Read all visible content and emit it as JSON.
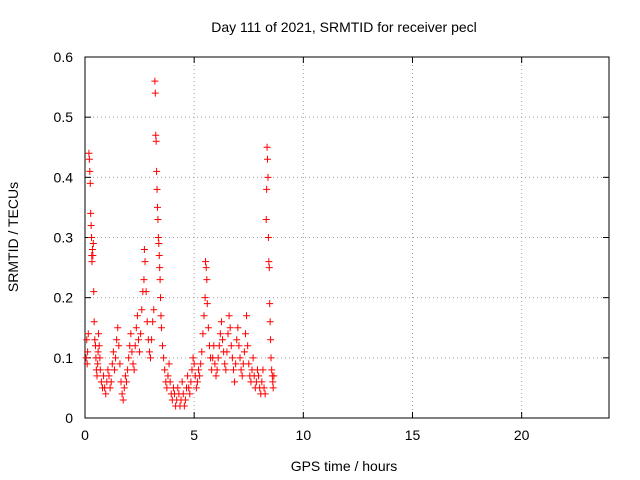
{
  "chart_data": {
    "type": "scatter",
    "title": "Day 111 of 2021, SRMTID for receiver pecl",
    "xlabel": "GPS time / hours",
    "ylabel": "SRMTID / TECUs",
    "xlim": [
      0,
      24
    ],
    "ylim": [
      0,
      0.6
    ],
    "x_ticks": [
      0,
      5,
      10,
      15,
      20
    ],
    "x_tick_labels": [
      "0",
      "5",
      "10",
      "15",
      "20"
    ],
    "y_ticks": [
      0,
      0.1,
      0.2,
      0.3,
      0.4,
      0.5,
      0.6
    ],
    "y_tick_labels": [
      "0",
      "0.1",
      "0.2",
      "0.3",
      "0.4",
      "0.5",
      "0.6"
    ],
    "grid": true,
    "marker": "+",
    "series": [
      {
        "name": "SRMTID",
        "color": "#ff0000",
        "points": [
          [
            0.05,
            0.1
          ],
          [
            0.08,
            0.13
          ],
          [
            0.1,
            0.09
          ],
          [
            0.12,
            0.11
          ],
          [
            0.15,
            0.14
          ],
          [
            0.18,
            0.44
          ],
          [
            0.2,
            0.43
          ],
          [
            0.22,
            0.41
          ],
          [
            0.24,
            0.39
          ],
          [
            0.26,
            0.34
          ],
          [
            0.28,
            0.32
          ],
          [
            0.3,
            0.3
          ],
          [
            0.31,
            0.27
          ],
          [
            0.32,
            0.26
          ],
          [
            0.34,
            0.28
          ],
          [
            0.36,
            0.27
          ],
          [
            0.38,
            0.29
          ],
          [
            0.4,
            0.21
          ],
          [
            0.42,
            0.16
          ],
          [
            0.45,
            0.13
          ],
          [
            0.48,
            0.12
          ],
          [
            0.5,
            0.1
          ],
          [
            0.52,
            0.08
          ],
          [
            0.55,
            0.07
          ],
          [
            0.58,
            0.09
          ],
          [
            0.6,
            0.11
          ],
          [
            0.62,
            0.14
          ],
          [
            0.65,
            0.12
          ],
          [
            0.68,
            0.1
          ],
          [
            0.7,
            0.08
          ],
          [
            0.75,
            0.06
          ],
          [
            0.8,
            0.05
          ],
          [
            0.85,
            0.07
          ],
          [
            0.9,
            0.05
          ],
          [
            0.95,
            0.04
          ],
          [
            1.0,
            0.06
          ],
          [
            1.05,
            0.08
          ],
          [
            1.1,
            0.07
          ],
          [
            1.15,
            0.05
          ],
          [
            1.2,
            0.06
          ],
          [
            1.25,
            0.09
          ],
          [
            1.3,
            0.11
          ],
          [
            1.35,
            0.08
          ],
          [
            1.4,
            0.1
          ],
          [
            1.45,
            0.13
          ],
          [
            1.5,
            0.15
          ],
          [
            1.55,
            0.12
          ],
          [
            1.6,
            0.09
          ],
          [
            1.65,
            0.06
          ],
          [
            1.7,
            0.04
          ],
          [
            1.75,
            0.03
          ],
          [
            1.8,
            0.05
          ],
          [
            1.85,
            0.07
          ],
          [
            1.9,
            0.06
          ],
          [
            1.95,
            0.08
          ],
          [
            2.0,
            0.1
          ],
          [
            2.05,
            0.12
          ],
          [
            2.1,
            0.14
          ],
          [
            2.15,
            0.11
          ],
          [
            2.2,
            0.09
          ],
          [
            2.25,
            0.08
          ],
          [
            2.3,
            0.12
          ],
          [
            2.35,
            0.15
          ],
          [
            2.4,
            0.17
          ],
          [
            2.45,
            0.13
          ],
          [
            2.5,
            0.11
          ],
          [
            2.55,
            0.14
          ],
          [
            2.6,
            0.18
          ],
          [
            2.65,
            0.21
          ],
          [
            2.7,
            0.23
          ],
          [
            2.72,
            0.28
          ],
          [
            2.75,
            0.26
          ],
          [
            2.8,
            0.21
          ],
          [
            2.85,
            0.16
          ],
          [
            2.9,
            0.13
          ],
          [
            2.95,
            0.11
          ],
          [
            3.0,
            0.1
          ],
          [
            3.05,
            0.13
          ],
          [
            3.1,
            0.16
          ],
          [
            3.15,
            0.18
          ],
          [
            3.2,
            0.56
          ],
          [
            3.22,
            0.54
          ],
          [
            3.24,
            0.47
          ],
          [
            3.26,
            0.46
          ],
          [
            3.28,
            0.41
          ],
          [
            3.3,
            0.38
          ],
          [
            3.32,
            0.35
          ],
          [
            3.34,
            0.33
          ],
          [
            3.36,
            0.3
          ],
          [
            3.38,
            0.29
          ],
          [
            3.4,
            0.27
          ],
          [
            3.42,
            0.25
          ],
          [
            3.44,
            0.23
          ],
          [
            3.46,
            0.2
          ],
          [
            3.48,
            0.17
          ],
          [
            3.5,
            0.15
          ],
          [
            3.55,
            0.12
          ],
          [
            3.6,
            0.1
          ],
          [
            3.65,
            0.08
          ],
          [
            3.7,
            0.06
          ],
          [
            3.75,
            0.05
          ],
          [
            3.8,
            0.07
          ],
          [
            3.85,
            0.09
          ],
          [
            3.9,
            0.06
          ],
          [
            3.95,
            0.04
          ],
          [
            4.0,
            0.03
          ],
          [
            4.05,
            0.05
          ],
          [
            4.1,
            0.04
          ],
          [
            4.15,
            0.02
          ],
          [
            4.2,
            0.03
          ],
          [
            4.25,
            0.05
          ],
          [
            4.3,
            0.04
          ],
          [
            4.35,
            0.02
          ],
          [
            4.4,
            0.03
          ],
          [
            4.45,
            0.06
          ],
          [
            4.5,
            0.04
          ],
          [
            4.55,
            0.02
          ],
          [
            4.6,
            0.03
          ],
          [
            4.65,
            0.05
          ],
          [
            4.7,
            0.07
          ],
          [
            4.75,
            0.05
          ],
          [
            4.8,
            0.04
          ],
          [
            4.85,
            0.06
          ],
          [
            4.9,
            0.08
          ],
          [
            4.95,
            0.1
          ],
          [
            5.0,
            0.09
          ],
          [
            5.05,
            0.07
          ],
          [
            5.1,
            0.05
          ],
          [
            5.15,
            0.06
          ],
          [
            5.2,
            0.08
          ],
          [
            5.25,
            0.07
          ],
          [
            5.3,
            0.09
          ],
          [
            5.35,
            0.11
          ],
          [
            5.4,
            0.14
          ],
          [
            5.45,
            0.17
          ],
          [
            5.5,
            0.2
          ],
          [
            5.52,
            0.26
          ],
          [
            5.55,
            0.25
          ],
          [
            5.58,
            0.23
          ],
          [
            5.6,
            0.19
          ],
          [
            5.65,
            0.15
          ],
          [
            5.7,
            0.12
          ],
          [
            5.75,
            0.1
          ],
          [
            5.8,
            0.08
          ],
          [
            5.85,
            0.1
          ],
          [
            5.9,
            0.12
          ],
          [
            5.95,
            0.09
          ],
          [
            6.0,
            0.07
          ],
          [
            6.05,
            0.08
          ],
          [
            6.1,
            0.1
          ],
          [
            6.15,
            0.12
          ],
          [
            6.2,
            0.14
          ],
          [
            6.25,
            0.16
          ],
          [
            6.3,
            0.13
          ],
          [
            6.35,
            0.11
          ],
          [
            6.4,
            0.09
          ],
          [
            6.45,
            0.08
          ],
          [
            6.5,
            0.11
          ],
          [
            6.55,
            0.14
          ],
          [
            6.6,
            0.17
          ],
          [
            6.65,
            0.15
          ],
          [
            6.7,
            0.12
          ],
          [
            6.75,
            0.1
          ],
          [
            6.8,
            0.08
          ],
          [
            6.85,
            0.06
          ],
          [
            6.9,
            0.09
          ],
          [
            6.95,
            0.13
          ],
          [
            7.0,
            0.15
          ],
          [
            7.05,
            0.12
          ],
          [
            7.1,
            0.1
          ],
          [
            7.15,
            0.08
          ],
          [
            7.2,
            0.07
          ],
          [
            7.25,
            0.09
          ],
          [
            7.3,
            0.11
          ],
          [
            7.35,
            0.14
          ],
          [
            7.4,
            0.17
          ],
          [
            7.45,
            0.12
          ],
          [
            7.5,
            0.09
          ],
          [
            7.55,
            0.07
          ],
          [
            7.6,
            0.06
          ],
          [
            7.65,
            0.08
          ],
          [
            7.7,
            0.1
          ],
          [
            7.75,
            0.07
          ],
          [
            7.8,
            0.05
          ],
          [
            7.85,
            0.06
          ],
          [
            7.9,
            0.08
          ],
          [
            7.95,
            0.07
          ],
          [
            8.0,
            0.05
          ],
          [
            8.05,
            0.04
          ],
          [
            8.1,
            0.06
          ],
          [
            8.15,
            0.08
          ],
          [
            8.2,
            0.05
          ],
          [
            8.25,
            0.04
          ],
          [
            8.3,
            0.33
          ],
          [
            8.32,
            0.38
          ],
          [
            8.34,
            0.45
          ],
          [
            8.36,
            0.43
          ],
          [
            8.38,
            0.4
          ],
          [
            8.4,
            0.3
          ],
          [
            8.42,
            0.26
          ],
          [
            8.44,
            0.25
          ],
          [
            8.46,
            0.19
          ],
          [
            8.48,
            0.16
          ],
          [
            8.5,
            0.13
          ],
          [
            8.52,
            0.1
          ],
          [
            8.55,
            0.08
          ],
          [
            8.58,
            0.07
          ],
          [
            8.6,
            0.06
          ],
          [
            8.62,
            0.05
          ],
          [
            8.65,
            0.07
          ]
        ]
      }
    ]
  }
}
